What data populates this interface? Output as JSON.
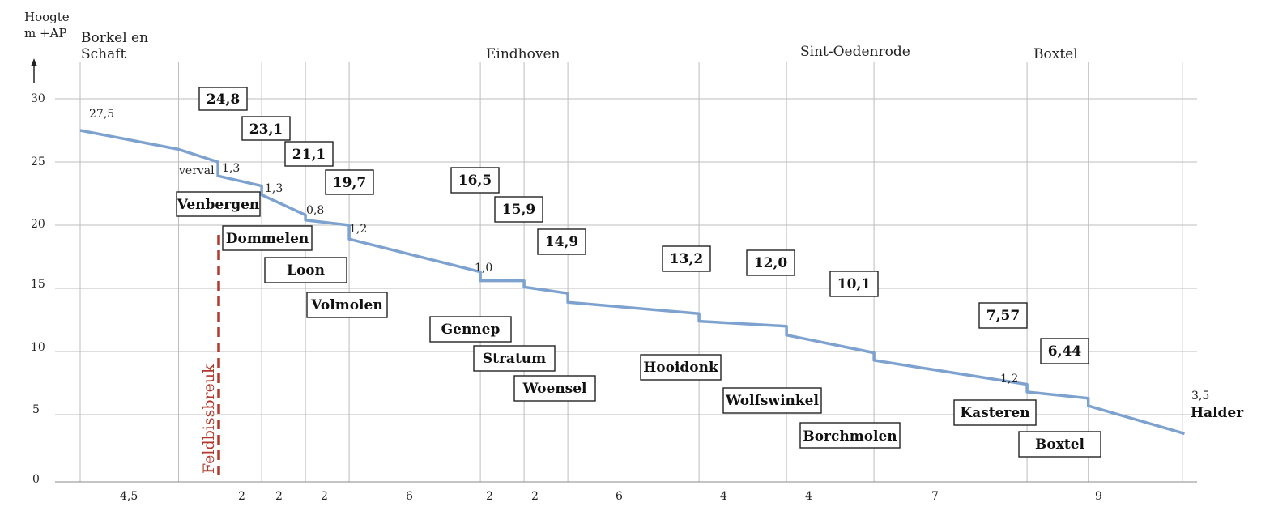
{
  "chart_data": {
    "type": "line",
    "ylabel_lines": [
      "Hoogte",
      "m +AP"
    ],
    "yticks": [
      "30",
      "25",
      "20",
      "15",
      "10",
      "5",
      "0"
    ],
    "ylim": [
      0,
      30
    ],
    "top_places": [
      "Borkel en",
      "Schaft",
      "Eindhoven",
      "Sint-Oedenrode",
      "Boxtel"
    ],
    "segment_distances": [
      "4,5",
      "2",
      "2",
      "2",
      "6",
      "2",
      "2",
      "6",
      "4",
      "4",
      "7",
      "9"
    ],
    "profile_points": [
      [
        0,
        27.5
      ],
      [
        4.5,
        26
      ],
      [
        6.3,
        25
      ],
      [
        6.3,
        23.9
      ],
      [
        8.3,
        23.1
      ],
      [
        8.3,
        22.4
      ],
      [
        10.3,
        20.8
      ],
      [
        10.3,
        20.4
      ],
      [
        12.3,
        20
      ],
      [
        12.3,
        18.9
      ],
      [
        18.3,
        16.3
      ],
      [
        18.3,
        15.6
      ],
      [
        20.3,
        15.6
      ],
      [
        20.3,
        15.1
      ],
      [
        22.3,
        14.6
      ],
      [
        22.3,
        13.9
      ],
      [
        28.3,
        13
      ],
      [
        28.3,
        12.4
      ],
      [
        32.3,
        12
      ],
      [
        32.3,
        11.3
      ],
      [
        36.3,
        9.9
      ],
      [
        36.3,
        9.3
      ],
      [
        43.3,
        7.4
      ],
      [
        43.3,
        6.8
      ],
      [
        46.1,
        6.3
      ],
      [
        46.1,
        5.7
      ],
      [
        50.5,
        3.5
      ]
    ],
    "elevation_labels": [
      "27,5",
      "24,8",
      "23,1",
      "21,1",
      "19,7",
      "16,5",
      "15,9",
      "14,9",
      "13,2",
      "12,0",
      "10,1",
      "7,57",
      "6,44",
      "3,5"
    ],
    "drop_labels": [
      "verval",
      "1,3",
      "1,3",
      "0,8",
      "1,2",
      "1,0",
      "1,2"
    ],
    "mills": [
      "Venbergen",
      "Dommelen",
      "Loon",
      "Volmolen",
      "Gennep",
      "Stratum",
      "Woensel",
      "Hooidonk",
      "Wolfswinkel",
      "Borchmolen",
      "Kasteren",
      "Boxtel"
    ],
    "end_label": "Halder",
    "fault_label": "Feldbissbreuk",
    "colors": {
      "profile": "#7ea2cf",
      "fault": "#b03a2e",
      "grid": "#bdbdbd"
    },
    "grid": true
  }
}
